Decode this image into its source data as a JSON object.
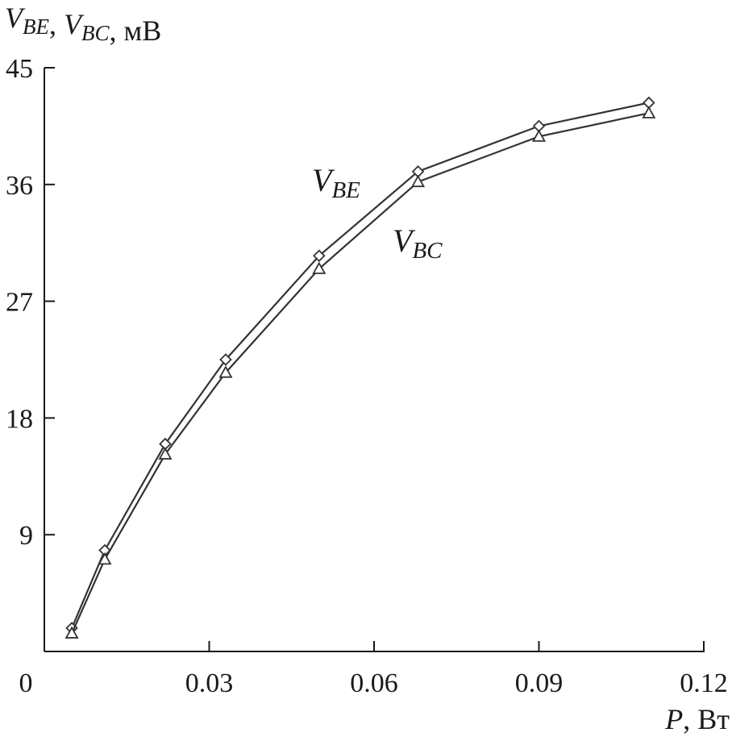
{
  "chart_data": {
    "type": "line",
    "ylabel": {
      "parts": [
        {
          "text": "V",
          "style": "italic"
        },
        {
          "text": "BE",
          "style": "italic-sub"
        },
        {
          "text": ", ",
          "style": "normal"
        },
        {
          "text": "V",
          "style": "italic"
        },
        {
          "text": "BC",
          "style": "italic-sub"
        },
        {
          "text": ", мВ",
          "style": "normal"
        }
      ]
    },
    "xlabel": {
      "parts": [
        {
          "text": "P",
          "style": "italic"
        },
        {
          "text": ", Вт",
          "style": "normal"
        }
      ]
    },
    "xlim": [
      0,
      0.12
    ],
    "ylim": [
      0,
      45
    ],
    "x_ticks": [
      0,
      0.03,
      0.06,
      0.09,
      0.12
    ],
    "x_tick_labels": [
      "0",
      "0.03",
      "0.06",
      "0.09",
      "0.12"
    ],
    "y_ticks": [
      9,
      18,
      27,
      36,
      45
    ],
    "y_tick_labels": [
      "9",
      "18",
      "27",
      "36",
      "45"
    ],
    "grid": false,
    "series": [
      {
        "name_main": "V",
        "name_sub": "BE",
        "marker": "diamond",
        "x": [
          0.005,
          0.011,
          0.022,
          0.033,
          0.05,
          0.068,
          0.09,
          0.11
        ],
        "y": [
          1.8,
          7.8,
          16.0,
          22.5,
          30.5,
          37.0,
          40.5,
          42.3
        ]
      },
      {
        "name_main": "V",
        "name_sub": "BC",
        "marker": "triangle",
        "x": [
          0.005,
          0.011,
          0.022,
          0.033,
          0.05,
          0.068,
          0.09,
          0.11
        ],
        "y": [
          1.4,
          7.1,
          15.2,
          21.5,
          29.5,
          36.2,
          39.7,
          41.5
        ]
      }
    ]
  }
}
